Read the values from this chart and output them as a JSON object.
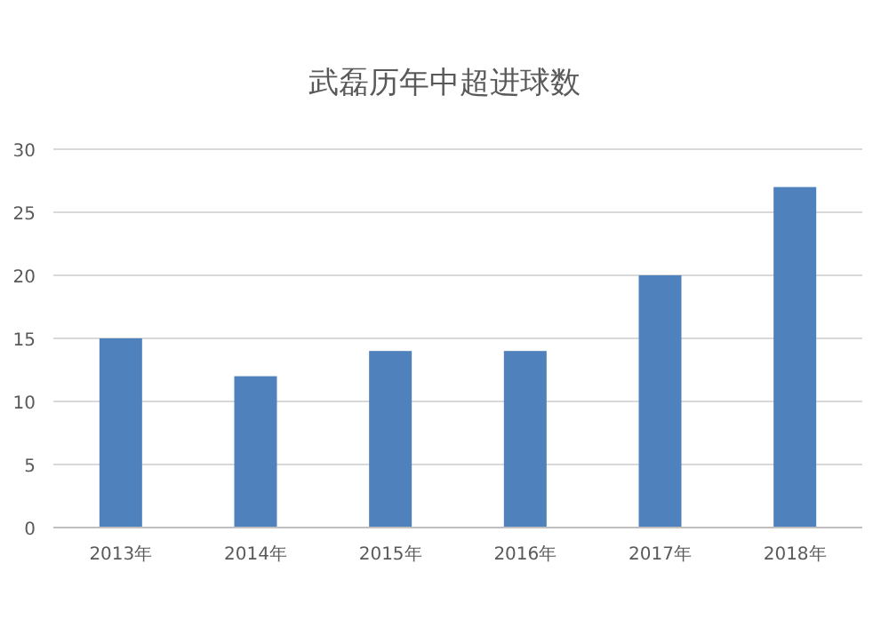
{
  "chart_data": {
    "type": "bar",
    "title": "武磊历年中超进球数",
    "categories": [
      "2013年",
      "2014年",
      "2015年",
      "2016年",
      "2017年",
      "2018年"
    ],
    "series": [
      {
        "color": "#4f81bd",
        "values": [
          15,
          12,
          14,
          14,
          20,
          27
        ]
      }
    ],
    "ylim": [
      0,
      30
    ],
    "yticks": [
      0,
      5,
      10,
      15,
      20,
      25,
      30
    ],
    "grid": "y"
  }
}
